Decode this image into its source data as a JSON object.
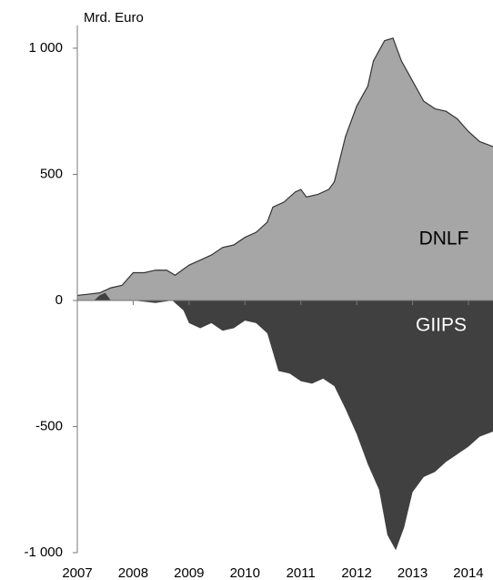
{
  "chart_data": {
    "type": "area",
    "y_label": "Mrd. Euro",
    "xlim": [
      2007,
      2014.44
    ],
    "xticks": [
      2007,
      2008,
      2009,
      2010,
      2011,
      2012,
      2013,
      2014
    ],
    "ylim": [
      -1000,
      1090
    ],
    "yticks": [
      {
        "value": 1000,
        "label": "1 000"
      },
      500,
      0,
      -500,
      {
        "value": -1000,
        "label": "-1 000"
      }
    ],
    "series": [
      {
        "name": "DNLF",
        "color": "#a6a6a6",
        "line_color": "#333333",
        "x": [
          2007.0,
          2007.2,
          2007.4,
          2007.6,
          2007.8,
          2008.0,
          2008.2,
          2008.4,
          2008.6,
          2008.75,
          2009.0,
          2009.2,
          2009.4,
          2009.6,
          2009.8,
          2010.0,
          2010.2,
          2010.4,
          2010.5,
          2010.7,
          2010.9,
          2011.0,
          2011.1,
          2011.3,
          2011.5,
          2011.6,
          2011.8,
          2012.0,
          2012.2,
          2012.3,
          2012.5,
          2012.65,
          2012.8,
          2013.0,
          2013.2,
          2013.4,
          2013.6,
          2013.8,
          2014.0,
          2014.2,
          2014.44
        ],
        "values": [
          20,
          25,
          30,
          50,
          60,
          110,
          110,
          120,
          120,
          100,
          140,
          160,
          180,
          210,
          220,
          250,
          270,
          310,
          370,
          390,
          430,
          440,
          410,
          420,
          440,
          470,
          650,
          770,
          850,
          950,
          1030,
          1040,
          950,
          870,
          790,
          760,
          750,
          720,
          670,
          630,
          610
        ]
      },
      {
        "name": "GIIPS",
        "color": "#404040",
        "label_color": "#ffffff",
        "x": [
          2007.0,
          2007.3,
          2007.4,
          2007.5,
          2007.6,
          2008.0,
          2008.4,
          2008.7,
          2008.9,
          2009.0,
          2009.2,
          2009.4,
          2009.6,
          2009.8,
          2010.0,
          2010.2,
          2010.4,
          2010.6,
          2010.8,
          2011.0,
          2011.2,
          2011.4,
          2011.6,
          2011.8,
          2012.0,
          2012.2,
          2012.4,
          2012.55,
          2012.7,
          2012.85,
          2013.0,
          2013.2,
          2013.4,
          2013.6,
          2013.8,
          2014.0,
          2014.2,
          2014.44
        ],
        "values": [
          0,
          0,
          20,
          30,
          0,
          0,
          -10,
          0,
          -40,
          -90,
          -110,
          -90,
          -120,
          -110,
          -80,
          -90,
          -130,
          -280,
          -290,
          -320,
          -330,
          -310,
          -340,
          -430,
          -530,
          -650,
          -750,
          -930,
          -990,
          -900,
          -760,
          -700,
          -680,
          -640,
          -610,
          -580,
          -540,
          -520
        ]
      }
    ]
  }
}
